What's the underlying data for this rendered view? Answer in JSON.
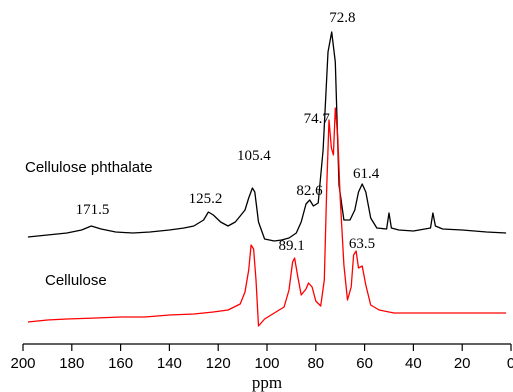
{
  "chart_data": {
    "type": "line",
    "xlabel": "ppm",
    "ylabel": "",
    "xlim": [
      200,
      0
    ],
    "x_reversed": true,
    "x_ticks": [
      200,
      180,
      160,
      140,
      120,
      100,
      80,
      60,
      40,
      20,
      0
    ],
    "grid": false,
    "series": [
      {
        "name": "Cellulose phthalate",
        "color": "#000000",
        "points": [
          [
            198,
            237
          ],
          [
            190,
            235
          ],
          [
            182,
            233
          ],
          [
            176,
            230
          ],
          [
            172,
            226
          ],
          [
            168,
            229
          ],
          [
            162,
            232
          ],
          [
            155,
            233
          ],
          [
            148,
            232
          ],
          [
            140,
            230
          ],
          [
            134,
            228
          ],
          [
            130,
            226
          ],
          [
            126,
            220
          ],
          [
            124,
            212
          ],
          [
            122,
            215
          ],
          [
            119,
            222
          ],
          [
            116,
            226
          ],
          [
            113,
            222
          ],
          [
            111,
            216
          ],
          [
            109,
            210
          ],
          [
            107.5,
            198
          ],
          [
            106,
            188
          ],
          [
            105,
            192
          ],
          [
            103.5,
            222
          ],
          [
            101,
            239
          ],
          [
            97,
            241
          ],
          [
            94,
            240
          ],
          [
            91,
            238
          ],
          [
            88,
            233
          ],
          [
            86,
            222
          ],
          [
            84,
            204
          ],
          [
            82.5,
            200
          ],
          [
            81,
            206
          ],
          [
            79,
            203
          ],
          [
            77,
            150
          ],
          [
            75,
            52
          ],
          [
            73.5,
            32
          ],
          [
            72,
            62
          ],
          [
            70.5,
            185
          ],
          [
            68.5,
            220
          ],
          [
            66,
            220
          ],
          [
            64,
            210
          ],
          [
            62.5,
            192
          ],
          [
            61,
            184
          ],
          [
            59.5,
            192
          ],
          [
            57.5,
            218
          ],
          [
            55,
            228
          ],
          [
            51,
            229
          ],
          [
            50,
            213
          ],
          [
            49,
            228
          ],
          [
            46,
            230
          ],
          [
            40,
            231
          ],
          [
            33,
            228
          ],
          [
            32,
            213
          ],
          [
            31,
            226
          ],
          [
            28,
            229
          ],
          [
            20,
            230
          ],
          [
            10,
            232
          ],
          [
            2,
            233
          ]
        ]
      },
      {
        "name": "Cellulose",
        "color": "#ff0000",
        "points": [
          [
            198,
            322
          ],
          [
            190,
            320
          ],
          [
            182,
            319
          ],
          [
            170,
            318
          ],
          [
            160,
            317
          ],
          [
            150,
            317
          ],
          [
            140,
            315
          ],
          [
            130,
            314
          ],
          [
            122,
            312
          ],
          [
            116,
            310
          ],
          [
            111,
            304
          ],
          [
            109,
            292
          ],
          [
            107.5,
            270
          ],
          [
            106.5,
            245
          ],
          [
            105.5,
            249
          ],
          [
            104.5,
            280
          ],
          [
            103.5,
            326
          ],
          [
            101,
            319
          ],
          [
            97,
            313
          ],
          [
            93,
            307
          ],
          [
            91,
            290
          ],
          [
            89.5,
            262
          ],
          [
            88.7,
            258
          ],
          [
            87.5,
            275
          ],
          [
            86,
            295
          ],
          [
            84,
            289
          ],
          [
            83,
            283
          ],
          [
            81.5,
            287
          ],
          [
            80,
            301
          ],
          [
            78,
            306
          ],
          [
            76.5,
            280
          ],
          [
            75.5,
            185
          ],
          [
            74.6,
            120
          ],
          [
            73.6,
            148
          ],
          [
            72.8,
            155
          ],
          [
            72,
            108
          ],
          [
            71,
            138
          ],
          [
            70,
            198
          ],
          [
            68.5,
            265
          ],
          [
            67,
            300
          ],
          [
            65.5,
            287
          ],
          [
            64.5,
            255
          ],
          [
            63.5,
            251
          ],
          [
            62.5,
            268
          ],
          [
            61,
            266
          ],
          [
            59.5,
            285
          ],
          [
            57.5,
            305
          ],
          [
            54,
            310
          ],
          [
            48,
            313
          ],
          [
            40,
            313
          ],
          [
            30,
            313
          ],
          [
            20,
            313
          ],
          [
            10,
            313
          ],
          [
            2,
            313
          ]
        ]
      }
    ],
    "annotations": [
      {
        "text": "72.8",
        "x": 72.8
      },
      {
        "text": "74.7",
        "x": 74.7
      },
      {
        "text": "105.4",
        "x": 105.4
      },
      {
        "text": "82.6",
        "x": 82.6
      },
      {
        "text": "61.4",
        "x": 61.4
      },
      {
        "text": "171.5",
        "x": 171.5
      },
      {
        "text": "125.2",
        "x": 125.2
      },
      {
        "text": "89.1",
        "x": 89.1
      },
      {
        "text": "63.5",
        "x": 63.5
      }
    ]
  }
}
